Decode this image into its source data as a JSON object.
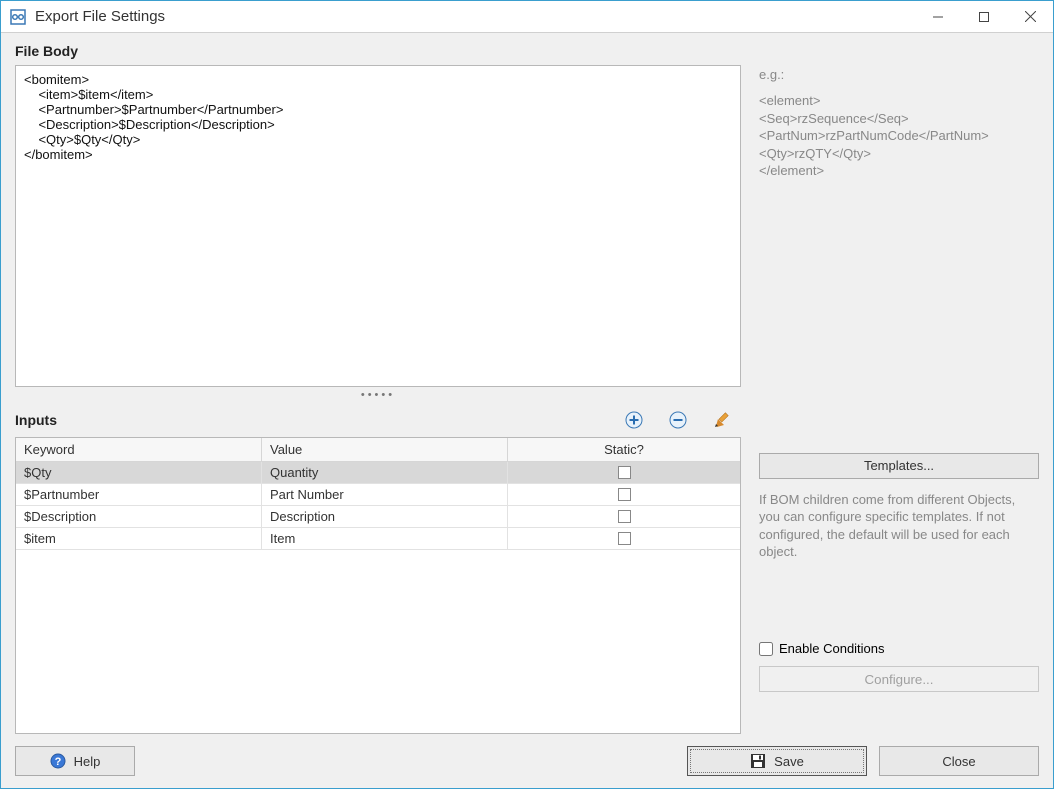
{
  "window": {
    "title": "Export File Settings"
  },
  "filebody": {
    "label": "File Body",
    "content": "<bomitem>\n    <item>$item</item>\n    <Partnumber>$Partnumber</Partnumber>\n    <Description>$Description</Description>\n    <Qty>$Qty</Qty>\n</bomitem>"
  },
  "example": {
    "label": "e.g.:",
    "text": "<element>\n<Seq>rzSequence</Seq>\n<PartNum>rzPartNumCode</PartNum>\n<Qty>rzQTY</Qty>\n</element>"
  },
  "inputs": {
    "label": "Inputs",
    "columns": {
      "keyword": "Keyword",
      "value": "Value",
      "static": "Static?"
    },
    "rows": [
      {
        "keyword": "$Qty",
        "value": "Quantity",
        "static": false,
        "selected": true
      },
      {
        "keyword": "$Partnumber",
        "value": "Part Number",
        "static": false,
        "selected": false
      },
      {
        "keyword": "$Description",
        "value": "Description",
        "static": false,
        "selected": false
      },
      {
        "keyword": "$item",
        "value": "Item",
        "static": false,
        "selected": false
      }
    ]
  },
  "templates": {
    "button_label": "Templates...",
    "hint": "If BOM children come from different Objects, you can configure specific templates. If not configured, the default will be used for each object."
  },
  "conditions": {
    "enable_label": "Enable Conditions",
    "enabled": false,
    "configure_label": "Configure..."
  },
  "buttons": {
    "help": "Help",
    "save": "Save",
    "close": "Close"
  },
  "colors": {
    "border_blue": "#3a9ece",
    "panel_bg": "#f0f0f0",
    "field_bg": "#ffffff",
    "field_border": "#b8b8b8",
    "row_selected": "#d8d8d8",
    "row_border": "#e2e2e2",
    "hint_text": "#888888"
  }
}
